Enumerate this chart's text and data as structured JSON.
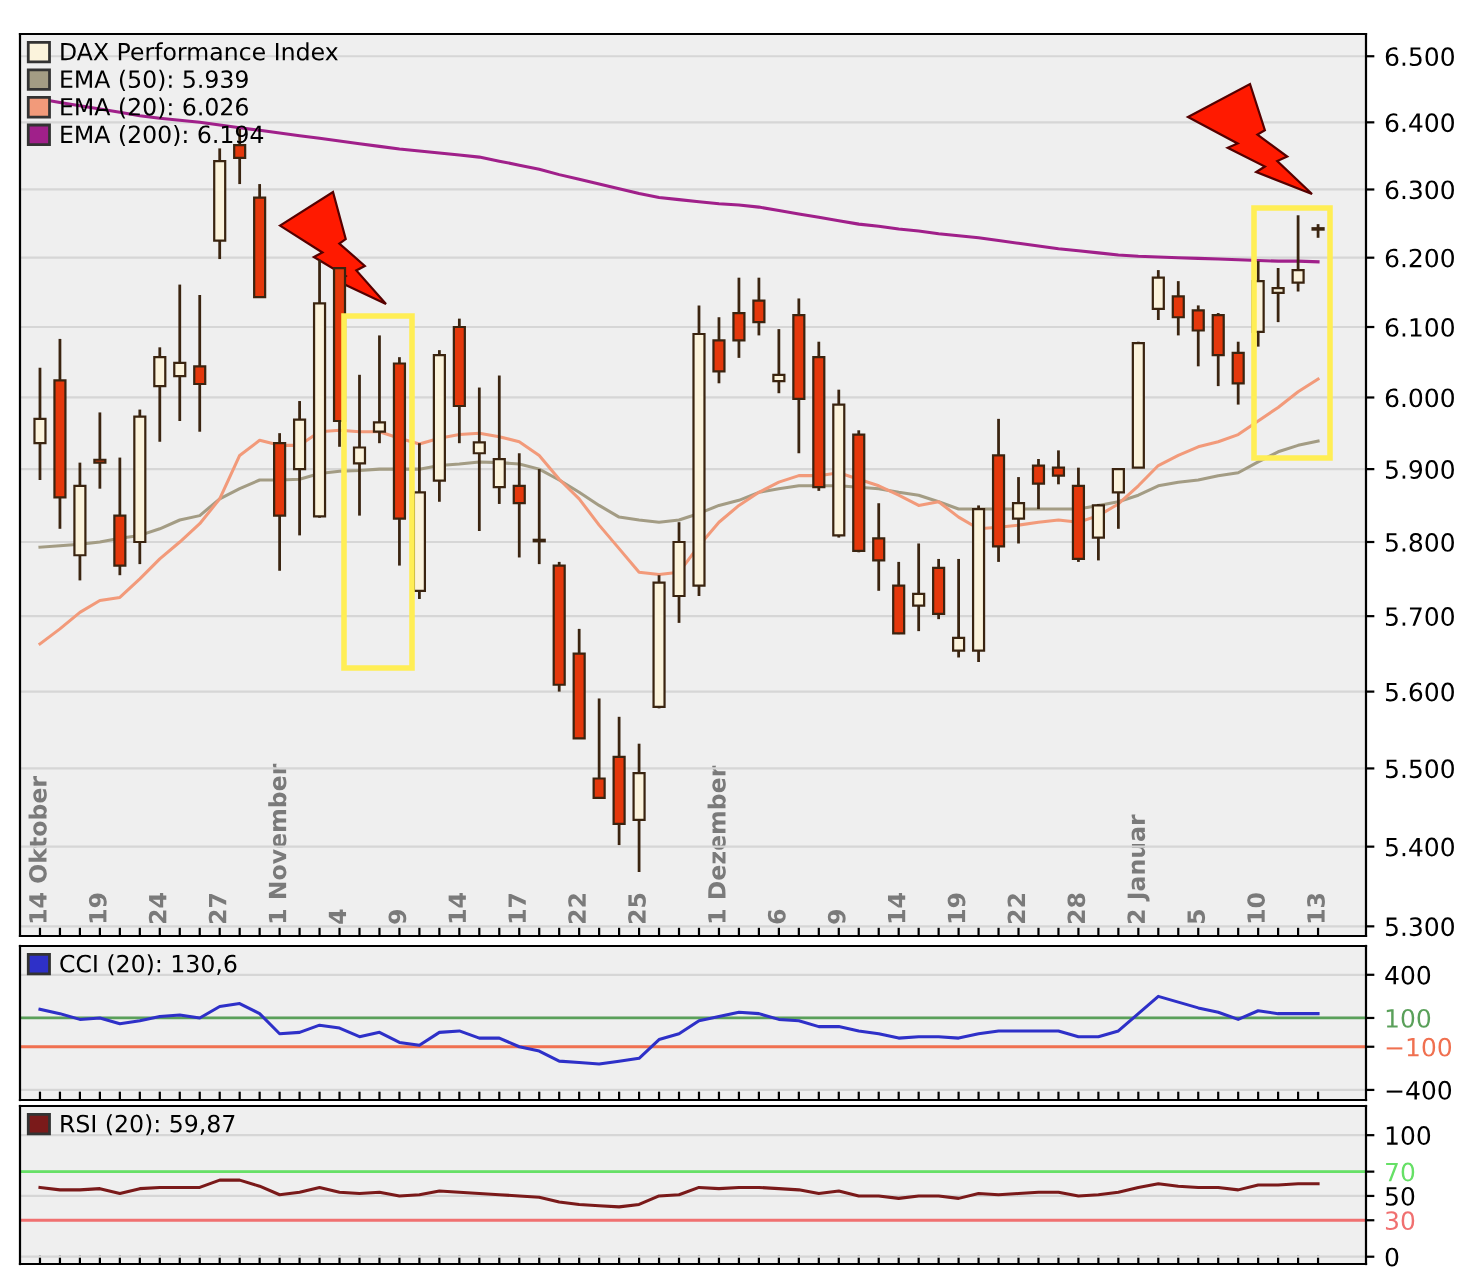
{
  "chart_data": [
    {
      "type": "candlestick",
      "categories": [
        "14 Oktober",
        null,
        null,
        "19",
        null,
        null,
        "24",
        null,
        null,
        "27",
        null,
        null,
        "1 November",
        null,
        null,
        "4",
        null,
        null,
        "9",
        null,
        null,
        "14",
        null,
        null,
        "17",
        null,
        null,
        "22",
        null,
        null,
        "25",
        null,
        null,
        null,
        "1 Dezember",
        null,
        null,
        "6",
        null,
        null,
        "9",
        null,
        null,
        "14",
        null,
        null,
        "19",
        null,
        null,
        "22",
        null,
        null,
        "28",
        null,
        null,
        "2 Januar",
        null,
        null,
        "5",
        null,
        null,
        "10",
        null,
        null,
        "13"
      ],
      "series": [
        {
          "type": "candlestick",
          "name": "DAX Performance Index",
          "color": "#3a2410",
          "colors": [
            "#fbf3dc",
            "#e4380c",
            "#fbf3dc",
            "#e4380c",
            "#e4380c",
            "#fbf3dc",
            "#fbf3dc",
            "#fbf3dc",
            "#e4380c",
            "#fbf3dc",
            "#e4380c",
            "#e4380c",
            "#e4380c",
            "#fbf3dc",
            "#fbf3dc",
            "#e4380c",
            "#fbf3dc",
            "#fbf3dc",
            "#e4380c",
            "#fbf3dc",
            "#fbf3dc",
            "#e4380c",
            "#fbf3dc",
            "#fbf3dc",
            "#e4380c",
            "#e4380c",
            "#e4380c",
            "#e4380c",
            "#e4380c",
            "#e4380c",
            "#fbf3dc",
            "#fbf3dc",
            "#fbf3dc",
            "#fbf3dc",
            "#e4380c",
            "#e4380c",
            "#e4380c",
            "#fbf3dc",
            "#e4380c",
            "#e4380c",
            "#fbf3dc",
            "#e4380c",
            "#e4380c",
            "#e4380c",
            "#fbf3dc",
            "#e4380c",
            "#fbf3dc",
            "#fbf3dc",
            "#e4380c",
            "#fbf3dc",
            "#e4380c",
            "#e4380c",
            "#e4380c",
            "#fbf3dc",
            "#fbf3dc",
            "#fbf3dc",
            "#fbf3dc",
            "#e4380c",
            "#e4380c",
            "#e4380c",
            "#e4380c",
            "#fbf3dc",
            "#fbf3dc",
            "#fbf3dc",
            "#fbf3dc"
          ],
          "ohlc": [
            [
              5936,
              6042,
              5885,
              5970
            ],
            [
              6024,
              6083,
              5818,
              5861
            ],
            [
              5782,
              5909,
              5748,
              5877
            ],
            [
              5913,
              5979,
              5873,
              5909
            ],
            [
              5836,
              5916,
              5755,
              5768
            ],
            [
              5800,
              5983,
              5770,
              5973
            ],
            [
              6016,
              6071,
              5938,
              6057
            ],
            [
              6030,
              6161,
              5967,
              6049
            ],
            [
              6044,
              6146,
              5952,
              6019
            ],
            [
              6225,
              6361,
              6198,
              6342
            ],
            [
              6366,
              6390,
              6308,
              6347
            ],
            [
              6288,
              6308,
              6143,
              6143
            ],
            [
              5936,
              5950,
              5761,
              5836
            ],
            [
              5900,
              5995,
              5809,
              5969
            ],
            [
              5835,
              6197,
              5833,
              6134
            ],
            [
              6185,
              6185,
              5931,
              5967
            ],
            [
              5908,
              6032,
              5836,
              5930
            ],
            [
              5952,
              6088,
              5936,
              5965
            ],
            [
              6048,
              6057,
              5768,
              5832
            ],
            [
              5734,
              5936,
              5723,
              5868
            ],
            [
              5884,
              6067,
              5855,
              6060
            ],
            [
              6100,
              6112,
              5936,
              5988
            ],
            [
              5922,
              6014,
              5815,
              5937
            ],
            [
              5875,
              6031,
              5852,
              5914
            ],
            [
              5877,
              5922,
              5779,
              5853
            ],
            [
              5803,
              5900,
              5770,
              5801
            ],
            [
              5768,
              5773,
              5600,
              5609
            ],
            [
              5650,
              5683,
              5539,
              5539
            ],
            [
              5487,
              5591,
              5462,
              5462
            ],
            [
              5515,
              5567,
              5402,
              5429
            ],
            [
              5434,
              5532,
              5368,
              5494
            ],
            [
              5580,
              5755,
              5578,
              5745
            ],
            [
              5727,
              5827,
              5691,
              5800
            ],
            [
              5741,
              6131,
              5727,
              6090
            ],
            [
              6081,
              6114,
              6020,
              6037
            ],
            [
              6120,
              6171,
              6056,
              6081
            ],
            [
              6138,
              6171,
              6088,
              6107
            ],
            [
              6023,
              6097,
              6006,
              6032
            ],
            [
              6117,
              6141,
              5922,
              5998
            ],
            [
              6057,
              6079,
              5870,
              5875
            ],
            [
              5809,
              6011,
              5806,
              5990
            ],
            [
              5948,
              5954,
              5786,
              5788
            ],
            [
              5805,
              5853,
              5734,
              5775
            ],
            [
              5741,
              5773,
              5676,
              5677
            ],
            [
              5714,
              5798,
              5680,
              5730
            ],
            [
              5765,
              5777,
              5696,
              5703
            ],
            [
              5654,
              5777,
              5645,
              5671
            ],
            [
              5654,
              5850,
              5639,
              5845
            ],
            [
              5919,
              5970,
              5773,
              5794
            ],
            [
              5832,
              5889,
              5798,
              5853
            ],
            [
              5905,
              5914,
              5845,
              5880
            ],
            [
              5902,
              5926,
              5879,
              5891
            ],
            [
              5877,
              5902,
              5773,
              5777
            ],
            [
              5806,
              5852,
              5775,
              5850
            ],
            [
              5868,
              5900,
              5818,
              5900
            ],
            [
              5902,
              6079,
              5902,
              6077
            ],
            [
              6126,
              6182,
              6110,
              6171
            ],
            [
              6144,
              6166,
              6088,
              6114
            ],
            [
              6124,
              6131,
              6044,
              6095
            ],
            [
              6117,
              6120,
              6016,
              6060
            ],
            [
              6063,
              6079,
              5990,
              6020
            ],
            [
              6093,
              6195,
              6072,
              6166
            ],
            [
              6149,
              6185,
              6107,
              6156
            ],
            [
              6164,
              6262,
              6151,
              6182
            ],
            [
              6241,
              6249,
              6229,
              6243
            ]
          ]
        },
        {
          "type": "line",
          "name": "EMA (50): 5.939",
          "color": "#a39c84",
          "values": [
            5793,
            5795,
            5797,
            5800,
            5805,
            5809,
            5818,
            5830,
            5836,
            5859,
            5873,
            5885,
            5885,
            5886,
            5894,
            5897,
            5898,
            5900,
            5900,
            5900,
            5905,
            5907,
            5910,
            5909,
            5907,
            5900,
            5885,
            5868,
            5850,
            5834,
            5830,
            5827,
            5830,
            5839,
            5850,
            5857,
            5868,
            5873,
            5877,
            5877,
            5877,
            5875,
            5873,
            5868,
            5864,
            5855,
            5845,
            5845,
            5845,
            5845,
            5845,
            5845,
            5845,
            5850,
            5855,
            5864,
            5877,
            5882,
            5885,
            5891,
            5895,
            5910,
            5924,
            5933,
            5939
          ]
        },
        {
          "type": "line",
          "name": "EMA (20): 6.026",
          "color": "#f29a7a",
          "values": [
            5663,
            5683,
            5705,
            5721,
            5725,
            5750,
            5777,
            5800,
            5825,
            5859,
            5919,
            5940,
            5933,
            5933,
            5952,
            5954,
            5952,
            5952,
            5943,
            5935,
            5943,
            5948,
            5950,
            5945,
            5938,
            5919,
            5886,
            5859,
            5823,
            5791,
            5759,
            5756,
            5759,
            5795,
            5827,
            5850,
            5868,
            5882,
            5891,
            5891,
            5895,
            5886,
            5877,
            5864,
            5850,
            5855,
            5834,
            5818,
            5820,
            5823,
            5827,
            5830,
            5827,
            5836,
            5852,
            5877,
            5905,
            5919,
            5931,
            5938,
            5948,
            5967,
            5986,
            6008,
            6026
          ]
        },
        {
          "type": "line",
          "name": "EMA (200): 6.194",
          "color": "#a0208a",
          "values": [
            6435,
            6430,
            6425,
            6420,
            6415,
            6410,
            6406,
            6403,
            6400,
            6396,
            6392,
            6388,
            6384,
            6380,
            6376,
            6372,
            6368,
            6364,
            6360,
            6357,
            6354,
            6351,
            6348,
            6342,
            6336,
            6330,
            6322,
            6315,
            6308,
            6301,
            6294,
            6288,
            6285,
            6282,
            6279,
            6277,
            6274,
            6269,
            6264,
            6259,
            6254,
            6249,
            6246,
            6242,
            6239,
            6235,
            6232,
            6229,
            6225,
            6221,
            6217,
            6213,
            6210,
            6207,
            6204,
            6202,
            6201,
            6200,
            6199,
            6198,
            6197,
            6196,
            6195,
            6195,
            6194
          ]
        }
      ],
      "log": "y",
      "ylim": [
        5288,
        6534
      ],
      "yticks": [
        {
          "value": 5300,
          "label": "5.300"
        },
        {
          "value": 5400,
          "label": "5.400"
        },
        {
          "value": 5500,
          "label": "5.500"
        },
        {
          "value": 5600,
          "label": "5.600"
        },
        {
          "value": 5700,
          "label": "5.700"
        },
        {
          "value": 5800,
          "label": "5.800"
        },
        {
          "value": 5900,
          "label": "5.900"
        },
        {
          "value": 6000,
          "label": "6.000"
        },
        {
          "value": 6100,
          "label": "6.100"
        },
        {
          "value": 6200,
          "label": "6.200"
        },
        {
          "value": 6300,
          "label": "6.300"
        },
        {
          "value": 6400,
          "label": "6.400"
        },
        {
          "value": 6500,
          "label": "6.500"
        }
      ],
      "grid": "y",
      "legend": "top left"
    },
    {
      "type": "line",
      "categories": [
        null,
        null,
        null,
        null,
        null,
        null,
        null,
        null,
        null,
        null,
        null,
        null,
        null,
        null,
        null,
        null,
        null,
        null,
        null,
        null,
        null,
        null,
        null,
        null,
        null,
        null,
        null,
        null,
        null,
        null,
        null,
        null,
        null,
        null,
        null,
        null,
        null,
        null,
        null,
        null,
        null,
        null,
        null,
        null,
        null,
        null,
        null,
        null,
        null,
        null,
        null,
        null,
        null,
        null,
        null,
        null,
        null,
        null,
        null,
        null,
        null,
        null,
        null,
        null,
        null
      ],
      "series": [
        {
          "name": "CCI (20): 130,6",
          "color": "#2e30c8",
          "values": [
            160,
            130,
            90,
            100,
            60,
            80,
            110,
            120,
            100,
            180,
            200,
            130,
            -10,
            0,
            50,
            30,
            -30,
            0,
            -70,
            -90,
            0,
            10,
            -40,
            -40,
            -100,
            -130,
            -200,
            -210,
            -220,
            -200,
            -180,
            -50,
            -10,
            80,
            110,
            140,
            130,
            90,
            80,
            40,
            40,
            10,
            -10,
            -40,
            -30,
            -30,
            -40,
            -10,
            10,
            10,
            10,
            10,
            -30,
            -30,
            10,
            130,
            250,
            210,
            170,
            140,
            90,
            150,
            130,
            130,
            130
          ]
        }
      ],
      "ylim": [
        -470,
        600
      ],
      "yticks": [
        400,
        100,
        {
          "value": -100,
          "label": "−100"
        },
        {
          "value": -400,
          "label": "−400"
        }
      ],
      "ref_lines": [
        {
          "axis": "y",
          "value": 100,
          "color": "#5aa05a"
        },
        {
          "axis": "y",
          "value": -100,
          "color": "#f07050"
        }
      ],
      "grid": "y",
      "legend": "top left"
    },
    {
      "type": "line",
      "categories": [
        null,
        null,
        null,
        null,
        null,
        null,
        null,
        null,
        null,
        null,
        null,
        null,
        null,
        null,
        null,
        null,
        null,
        null,
        null,
        null,
        null,
        null,
        null,
        null,
        null,
        null,
        null,
        null,
        null,
        null,
        null,
        null,
        null,
        null,
        null,
        null,
        null,
        null,
        null,
        null,
        null,
        null,
        null,
        null,
        null,
        null,
        null,
        null,
        null,
        null,
        null,
        null,
        null,
        null,
        null,
        null,
        null,
        null,
        null,
        null,
        null,
        null,
        null,
        null,
        null
      ],
      "series": [
        {
          "name": "RSI (20): 59,87",
          "color": "#7a1a1a",
          "values": [
            57,
            55,
            55,
            56,
            52,
            56,
            57,
            57,
            57,
            63,
            63,
            58,
            51,
            53,
            57,
            53,
            52,
            53,
            50,
            51,
            54,
            53,
            52,
            51,
            50,
            49,
            45,
            43,
            42,
            41,
            43,
            50,
            51,
            57,
            56,
            57,
            57,
            56,
            55,
            52,
            54,
            50,
            50,
            48,
            50,
            50,
            48,
            52,
            51,
            52,
            53,
            53,
            50,
            51,
            53,
            57,
            60,
            58,
            57,
            57,
            55,
            59,
            59,
            60,
            60
          ]
        }
      ],
      "ylim": [
        -6,
        124
      ],
      "yticks": [
        0,
        30,
        50,
        70,
        100
      ],
      "ref_lines": [
        {
          "axis": "y",
          "value": 70,
          "color": "#66e066"
        },
        {
          "axis": "y",
          "value": 30,
          "color": "#f07070"
        }
      ],
      "grid": "y",
      "legend": "top left"
    }
  ]
}
